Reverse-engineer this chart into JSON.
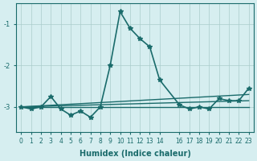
{
  "xlabel": "Humidex (Indice chaleur)",
  "ylabel": "",
  "background_color": "#d6eef0",
  "grid_color": "#aacccc",
  "line_color": "#1a6b6b",
  "x_ticks": [
    0,
    1,
    2,
    3,
    4,
    5,
    6,
    7,
    8,
    9,
    10,
    11,
    12,
    13,
    14,
    16,
    17,
    18,
    19,
    20,
    21,
    22,
    23
  ],
  "x_tick_labels": [
    "0",
    "1",
    "2",
    "3",
    "4",
    "5",
    "6",
    "7",
    "8",
    "9",
    "10",
    "11",
    "12",
    "13",
    "14",
    "16",
    "17",
    "18",
    "19",
    "20",
    "21",
    "22",
    "23"
  ],
  "ylim": [
    -3.6,
    -0.5
  ],
  "yticks": [
    -3,
    -2,
    -1
  ],
  "xlim": [
    -0.5,
    23.5
  ],
  "series": [
    {
      "x": [
        0,
        1,
        2,
        3,
        4,
        5,
        6,
        7,
        8,
        9,
        10,
        11,
        12,
        13,
        14,
        16,
        17,
        18,
        19,
        20,
        21,
        22,
        23
      ],
      "y": [
        -3.0,
        -3.05,
        -3.0,
        -2.75,
        -3.05,
        -3.2,
        -3.1,
        -3.25,
        -3.0,
        -2.0,
        -0.7,
        -1.1,
        -1.35,
        -1.55,
        -2.35,
        -2.95,
        -3.05,
        -3.0,
        -3.05,
        -2.8,
        -2.85,
        -2.85,
        -2.55
      ],
      "color": "#1a6b6b",
      "marker": "*",
      "markersize": 4,
      "linewidth": 1.2,
      "zorder": 3
    },
    {
      "x": [
        0,
        23
      ],
      "y": [
        -3.0,
        -2.85
      ],
      "color": "#1a6b6b",
      "marker": null,
      "markersize": 0,
      "linewidth": 1.0,
      "zorder": 2
    },
    {
      "x": [
        0,
        23
      ],
      "y": [
        -3.0,
        -2.7
      ],
      "color": "#1a6b6b",
      "marker": null,
      "markersize": 0,
      "linewidth": 1.0,
      "zorder": 2
    },
    {
      "x": [
        0,
        23
      ],
      "y": [
        -3.0,
        -3.0
      ],
      "color": "#1a6b6b",
      "marker": null,
      "markersize": 0,
      "linewidth": 1.0,
      "zorder": 2
    }
  ]
}
